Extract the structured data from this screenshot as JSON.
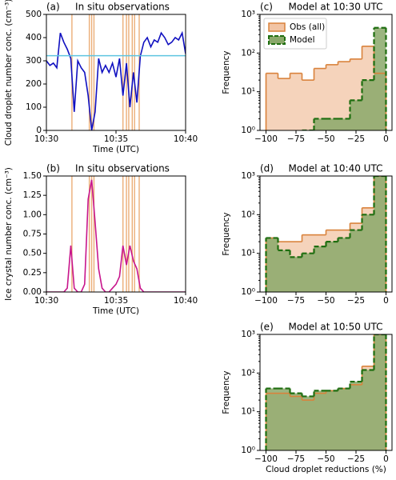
{
  "chart_data": [
    {
      "type": "line",
      "label": "(a)",
      "title": "In situ observations",
      "xlabel": "Time (UTC)",
      "ylabel": "Cloud droplet number conc. (cm⁻³)",
      "x": [
        "10:30:00",
        "10:30:15",
        "10:30:30",
        "10:30:45",
        "10:31:00",
        "10:31:15",
        "10:31:30",
        "10:31:45",
        "10:32:00",
        "10:32:15",
        "10:32:30",
        "10:32:45",
        "10:33:00",
        "10:33:15",
        "10:33:30",
        "10:33:45",
        "10:34:00",
        "10:34:15",
        "10:34:30",
        "10:34:45",
        "10:35:00",
        "10:35:15",
        "10:35:30",
        "10:35:45",
        "10:36:00",
        "10:36:15",
        "10:36:30",
        "10:36:45",
        "10:37:00",
        "10:37:15",
        "10:37:30",
        "10:37:45",
        "10:38:00",
        "10:38:15",
        "10:38:30",
        "10:38:45",
        "10:39:00",
        "10:39:15",
        "10:39:30",
        "10:39:45",
        "10:40:00"
      ],
      "series": [
        {
          "color": "#1010c0",
          "values": [
            300,
            280,
            290,
            270,
            420,
            380,
            350,
            310,
            80,
            300,
            270,
            250,
            150,
            0,
            80,
            310,
            250,
            280,
            250,
            290,
            230,
            310,
            150,
            290,
            100,
            250,
            120,
            320,
            380,
            400,
            360,
            390,
            380,
            420,
            400,
            370,
            380,
            400,
            390,
            420,
            330
          ]
        }
      ],
      "reference_line": {
        "value": 322,
        "color": "#5ec4e0"
      },
      "event_times": [
        "10:31:50",
        "10:33:05",
        "10:33:15",
        "10:33:25",
        "10:35:30",
        "10:35:45",
        "10:35:55",
        "10:36:10",
        "10:36:20",
        "10:36:40"
      ],
      "event_color": "#e8a060",
      "xlim": [
        "10:30",
        "10:40"
      ],
      "xticks": [
        "10:30",
        "10:35",
        "10:40"
      ],
      "ylim": [
        0,
        500
      ],
      "yticks": [
        0,
        100,
        200,
        300,
        400,
        500
      ]
    },
    {
      "type": "line",
      "label": "(b)",
      "title": "In situ observations",
      "xlabel": "Time (UTC)",
      "ylabel": "Ice crystal number conc. (cm⁻³)",
      "x": [
        "10:30:00",
        "10:30:15",
        "10:30:30",
        "10:30:45",
        "10:31:00",
        "10:31:15",
        "10:31:30",
        "10:31:45",
        "10:32:00",
        "10:32:15",
        "10:32:30",
        "10:32:45",
        "10:33:00",
        "10:33:15",
        "10:33:30",
        "10:33:45",
        "10:34:00",
        "10:34:15",
        "10:34:30",
        "10:34:45",
        "10:35:00",
        "10:35:15",
        "10:35:30",
        "10:35:45",
        "10:36:00",
        "10:36:15",
        "10:36:30",
        "10:36:45",
        "10:37:00",
        "10:37:15",
        "10:37:30",
        "10:37:45",
        "10:38:00",
        "10:38:15",
        "10:38:30",
        "10:38:45",
        "10:39:00",
        "10:39:15",
        "10:39:30",
        "10:39:45",
        "10:40:00"
      ],
      "series": [
        {
          "color": "#c8168c",
          "values": [
            0,
            0,
            0,
            0,
            0,
            0,
            0.05,
            0.6,
            0.05,
            0,
            0,
            0.1,
            1.2,
            1.45,
            0.9,
            0.3,
            0.05,
            0,
            0,
            0.05,
            0.1,
            0.2,
            0.6,
            0.35,
            0.6,
            0.4,
            0.3,
            0.05,
            0,
            0,
            0,
            0,
            0,
            0,
            0,
            0,
            0,
            0,
            0,
            0,
            0
          ]
        }
      ],
      "event_times": [
        "10:31:50",
        "10:33:05",
        "10:33:15",
        "10:33:25",
        "10:35:30",
        "10:35:45",
        "10:35:55",
        "10:36:10",
        "10:36:20",
        "10:36:40"
      ],
      "event_color": "#e8a060",
      "xlim": [
        "10:30",
        "10:40"
      ],
      "xticks": [
        "10:30",
        "10:35",
        "10:40"
      ],
      "ylim": [
        0,
        1.5
      ],
      "yticks": [
        {
          "value": 0,
          "label": "0.00"
        },
        {
          "value": 0.25,
          "label": "0.25"
        },
        {
          "value": 0.5,
          "label": "0.50"
        },
        {
          "value": 0.75,
          "label": "0.75"
        },
        {
          "value": 1,
          "label": "1.00"
        },
        {
          "value": 1.25,
          "label": "1.25"
        },
        {
          "value": 1.5,
          "label": "1.50"
        }
      ]
    },
    {
      "type": "histogram",
      "label": "(c)",
      "title": "Model at 10:30 UTC",
      "ylabel": "Frequency",
      "yscale": "log",
      "legend": "upper left",
      "bins": [
        -100,
        -90,
        -80,
        -70,
        -60,
        -50,
        -40,
        -30,
        -20,
        -10,
        0
      ],
      "series": [
        {
          "name": "Obs (all)",
          "color": "#d9823b",
          "fill": "#f2c4a4",
          "values": [
            30,
            22,
            30,
            20,
            40,
            50,
            60,
            70,
            150,
            30
          ]
        },
        {
          "name": "Model",
          "color": "#1f6e10",
          "fill": "#8aa86a",
          "linestyle": "dashed",
          "values": [
            0,
            0,
            0,
            1,
            2,
            2,
            2,
            6,
            20,
            450
          ]
        }
      ],
      "xlim": [
        -105,
        5
      ],
      "xticks": [
        {
          "value": -100,
          "label": "−100"
        },
        {
          "value": -75,
          "label": "−75"
        },
        {
          "value": -50,
          "label": "−50"
        },
        {
          "value": -25,
          "label": "−25"
        },
        0
      ],
      "ylim": [
        1,
        1000
      ],
      "yticks": [
        {
          "value": 1,
          "label": "10⁰"
        },
        {
          "value": 10,
          "label": "10¹"
        },
        {
          "value": 100,
          "label": "10²"
        },
        {
          "value": 1000,
          "label": "10³"
        }
      ]
    },
    {
      "type": "histogram",
      "label": "(d)",
      "title": "Model at 10:40 UTC",
      "ylabel": "Frequency",
      "yscale": "log",
      "bins": [
        -100,
        -90,
        -80,
        -70,
        -60,
        -50,
        -40,
        -30,
        -20,
        -10,
        0
      ],
      "series": [
        {
          "color": "#d9823b",
          "fill": "#f2c4a4",
          "values": [
            25,
            20,
            20,
            30,
            30,
            40,
            40,
            60,
            150,
            1000
          ]
        },
        {
          "color": "#1f6e10",
          "fill": "#8aa86a",
          "linestyle": "dashed",
          "values": [
            25,
            12,
            8,
            10,
            15,
            20,
            25,
            40,
            100,
            1000
          ]
        }
      ],
      "xlim": [
        -105,
        5
      ],
      "xticks": [
        {
          "value": -100,
          "label": "−100"
        },
        {
          "value": -75,
          "label": "−75"
        },
        {
          "value": -50,
          "label": "−50"
        },
        {
          "value": -25,
          "label": "−25"
        },
        0
      ],
      "ylim": [
        1,
        1000
      ],
      "yticks": [
        {
          "value": 1,
          "label": "10⁰"
        },
        {
          "value": 10,
          "label": "10¹"
        },
        {
          "value": 100,
          "label": "10²"
        },
        {
          "value": 1000,
          "label": "10³"
        }
      ]
    },
    {
      "type": "histogram",
      "label": "(e)",
      "title": "Model at 10:50 UTC",
      "ylabel": "Frequency",
      "xlabel": "Cloud droplet reductions (%)",
      "yscale": "log",
      "bins": [
        -100,
        -90,
        -80,
        -70,
        -60,
        -50,
        -40,
        -30,
        -20,
        -10,
        0
      ],
      "series": [
        {
          "color": "#d9823b",
          "fill": "#f2c4a4",
          "values": [
            30,
            30,
            25,
            20,
            30,
            35,
            40,
            50,
            150,
            1000
          ]
        },
        {
          "color": "#1f6e10",
          "fill": "#8aa86a",
          "linestyle": "dashed",
          "values": [
            40,
            40,
            30,
            25,
            35,
            35,
            40,
            60,
            120,
            1000
          ]
        }
      ],
      "xlim": [
        -105,
        5
      ],
      "xticks": [
        {
          "value": -100,
          "label": "−100"
        },
        {
          "value": -75,
          "label": "−75"
        },
        {
          "value": -50,
          "label": "−50"
        },
        {
          "value": -25,
          "label": "−25"
        },
        0
      ],
      "ylim": [
        1,
        1000
      ],
      "yticks": [
        {
          "value": 1,
          "label": "10⁰"
        },
        {
          "value": 10,
          "label": "10¹"
        },
        {
          "value": 100,
          "label": "10²"
        },
        {
          "value": 1000,
          "label": "10³"
        }
      ]
    }
  ]
}
